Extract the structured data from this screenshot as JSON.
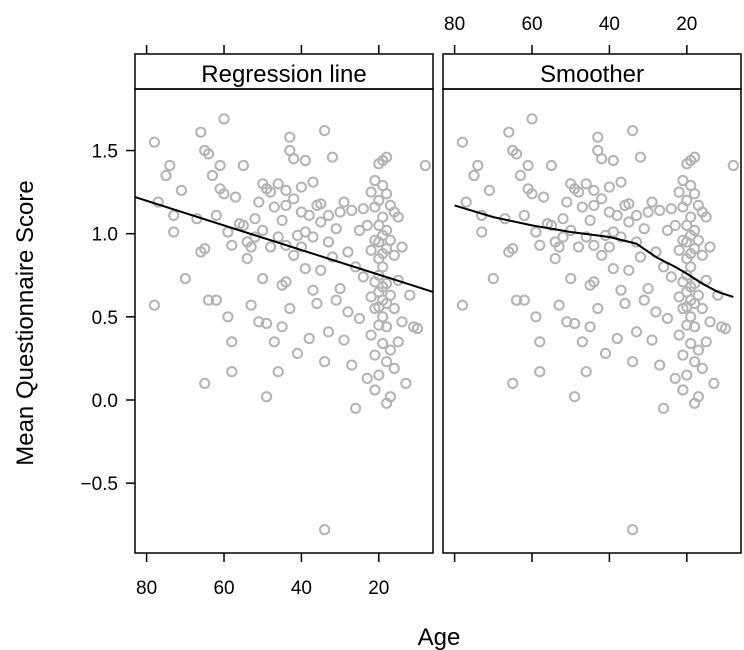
{
  "chart_data": {
    "type": "scatter",
    "xlabel": "Age",
    "ylabel": "Mean Questionnaire Score",
    "xlim": [
      83,
      6
    ],
    "ylim": [
      -0.92,
      1.87
    ],
    "x_ticks": [
      80,
      60,
      40,
      20
    ],
    "y_ticks": [
      1.5,
      1.0,
      0.5,
      0.0,
      -0.5
    ],
    "y_tick_labels": [
      "1.5",
      "1.0",
      "0.5",
      "0.0",
      "−0.5"
    ],
    "point_color": "#b3b3b3",
    "line_color": "#000000",
    "panels": [
      {
        "strip": "Regression line",
        "fit": {
          "type": "regression",
          "points": [
            [
              83,
              1.22
            ],
            [
              6,
              0.65
            ]
          ]
        }
      },
      {
        "strip": "Smoother",
        "fit": {
          "type": "smoother",
          "points": [
            [
              80,
              1.17
            ],
            [
              70,
              1.1
            ],
            [
              60,
              1.05
            ],
            [
              50,
              1.01
            ],
            [
              40,
              0.98
            ],
            [
              33,
              0.94
            ],
            [
              28,
              0.86
            ],
            [
              23,
              0.8
            ],
            [
              20,
              0.76
            ],
            [
              16,
              0.7
            ],
            [
              12,
              0.65
            ],
            [
              8,
              0.62
            ]
          ]
        }
      }
    ],
    "points": [
      [
        78,
        1.55
      ],
      [
        77,
        1.19
      ],
      [
        75,
        1.35
      ],
      [
        74,
        1.41
      ],
      [
        73,
        1.11
      ],
      [
        73,
        1.01
      ],
      [
        71,
        1.26
      ],
      [
        70,
        0.73
      ],
      [
        78,
        0.57
      ],
      [
        67,
        1.09
      ],
      [
        66,
        0.89
      ],
      [
        66,
        1.61
      ],
      [
        65,
        0.91
      ],
      [
        65,
        1.5
      ],
      [
        65,
        0.1
      ],
      [
        64,
        1.48
      ],
      [
        64,
        0.6
      ],
      [
        63,
        1.35
      ],
      [
        62,
        1.11
      ],
      [
        62,
        0.6
      ],
      [
        61,
        1.27
      ],
      [
        61,
        1.41
      ],
      [
        60,
        1.69
      ],
      [
        60,
        1.24
      ],
      [
        59,
        1.01
      ],
      [
        59,
        0.5
      ],
      [
        58,
        0.17
      ],
      [
        58,
        0.93
      ],
      [
        58,
        0.35
      ],
      [
        57,
        1.22
      ],
      [
        56,
        1.06
      ],
      [
        55,
        1.41
      ],
      [
        55,
        1.05
      ],
      [
        54,
        0.95
      ],
      [
        54,
        0.85
      ],
      [
        53,
        0.57
      ],
      [
        53,
        0.92
      ],
      [
        52,
        1.09
      ],
      [
        52,
        0.98
      ],
      [
        51,
        1.19
      ],
      [
        51,
        0.47
      ],
      [
        50,
        1.3
      ],
      [
        50,
        1.02
      ],
      [
        50,
        0.73
      ],
      [
        49,
        1.27
      ],
      [
        49,
        0.02
      ],
      [
        49,
        0.46
      ],
      [
        48,
        1.25
      ],
      [
        48,
        0.92
      ],
      [
        47,
        1.16
      ],
      [
        47,
        0.35
      ],
      [
        46,
        1.3
      ],
      [
        46,
        0.98
      ],
      [
        46,
        0.17
      ],
      [
        45,
        1.08
      ],
      [
        45,
        0.69
      ],
      [
        45,
        0.44
      ],
      [
        44,
        1.26
      ],
      [
        44,
        1.17
      ],
      [
        44,
        0.71
      ],
      [
        43,
        1.58
      ],
      [
        43,
        1.5
      ],
      [
        43,
        0.55
      ],
      [
        42,
        1.45
      ],
      [
        42,
        1.21
      ],
      [
        42,
        0.87
      ],
      [
        41,
        0.99
      ],
      [
        41,
        0.28
      ],
      [
        40,
        1.28
      ],
      [
        40,
        1.13
      ],
      [
        40,
        0.92
      ],
      [
        39,
        1.44
      ],
      [
        39,
        1.01
      ],
      [
        39,
        0.79
      ],
      [
        38,
        1.11
      ],
      [
        38,
        0.37
      ],
      [
        37,
        1.31
      ],
      [
        37,
        0.98
      ],
      [
        37,
        0.66
      ],
      [
        36,
        1.17
      ],
      [
        36,
        0.58
      ],
      [
        35,
        1.18
      ],
      [
        35,
        0.78
      ],
      [
        34,
        1.62
      ],
      [
        34,
        0.23
      ],
      [
        34,
        -0.78
      ],
      [
        33,
        1.11
      ],
      [
        33,
        0.95
      ],
      [
        33,
        0.41
      ],
      [
        32,
        1.46
      ],
      [
        32,
        0.86
      ],
      [
        31,
        1.03
      ],
      [
        31,
        0.6
      ],
      [
        30,
        1.13
      ],
      [
        30,
        0.67
      ],
      [
        29,
        1.19
      ],
      [
        29,
        0.36
      ],
      [
        28,
        0.89
      ],
      [
        28,
        0.53
      ],
      [
        27,
        1.14
      ],
      [
        27,
        0.21
      ],
      [
        26,
        -0.05
      ],
      [
        26,
        0.8
      ],
      [
        25,
        1.02
      ],
      [
        25,
        0.49
      ],
      [
        24,
        1.15
      ],
      [
        24,
        0.74
      ],
      [
        23,
        1.05
      ],
      [
        23,
        0.13
      ],
      [
        22,
        1.25
      ],
      [
        22,
        0.9
      ],
      [
        22,
        0.62
      ],
      [
        22,
        0.39
      ],
      [
        21,
        1.32
      ],
      [
        21,
        1.16
      ],
      [
        21,
        0.96
      ],
      [
        21,
        0.71
      ],
      [
        21,
        0.55
      ],
      [
        21,
        0.27
      ],
      [
        21,
        0.06
      ],
      [
        20,
        1.42
      ],
      [
        20,
        1.2
      ],
      [
        20,
        1.05
      ],
      [
        20,
        0.95
      ],
      [
        20,
        0.85
      ],
      [
        20,
        0.75
      ],
      [
        20,
        0.65
      ],
      [
        20,
        0.56
      ],
      [
        20,
        0.45
      ],
      [
        20,
        0.15
      ],
      [
        19,
        1.44
      ],
      [
        19,
        1.29
      ],
      [
        19,
        1.1
      ],
      [
        19,
        0.99
      ],
      [
        19,
        0.88
      ],
      [
        19,
        0.8
      ],
      [
        19,
        0.68
      ],
      [
        19,
        0.6
      ],
      [
        19,
        0.5
      ],
      [
        19,
        0.34
      ],
      [
        18,
        1.46
      ],
      [
        18,
        1.24
      ],
      [
        18,
        1.02
      ],
      [
        18,
        0.91
      ],
      [
        18,
        0.7
      ],
      [
        18,
        0.58
      ],
      [
        18,
        0.44
      ],
      [
        18,
        0.23
      ],
      [
        18,
        -0.02
      ],
      [
        17,
        1.17
      ],
      [
        17,
        0.96
      ],
      [
        17,
        0.63
      ],
      [
        17,
        0.3
      ],
      [
        17,
        0.02
      ],
      [
        16,
        1.13
      ],
      [
        16,
        0.87
      ],
      [
        16,
        0.55
      ],
      [
        16,
        0.19
      ],
      [
        15,
        1.1
      ],
      [
        15,
        0.72
      ],
      [
        15,
        0.35
      ],
      [
        14,
        0.92
      ],
      [
        14,
        0.47
      ],
      [
        13,
        0.1
      ],
      [
        12,
        0.63
      ],
      [
        11,
        0.44
      ],
      [
        10,
        0.43
      ],
      [
        8,
        1.41
      ],
      [
        35,
        1.07
      ],
      [
        44,
        0.93
      ]
    ]
  }
}
